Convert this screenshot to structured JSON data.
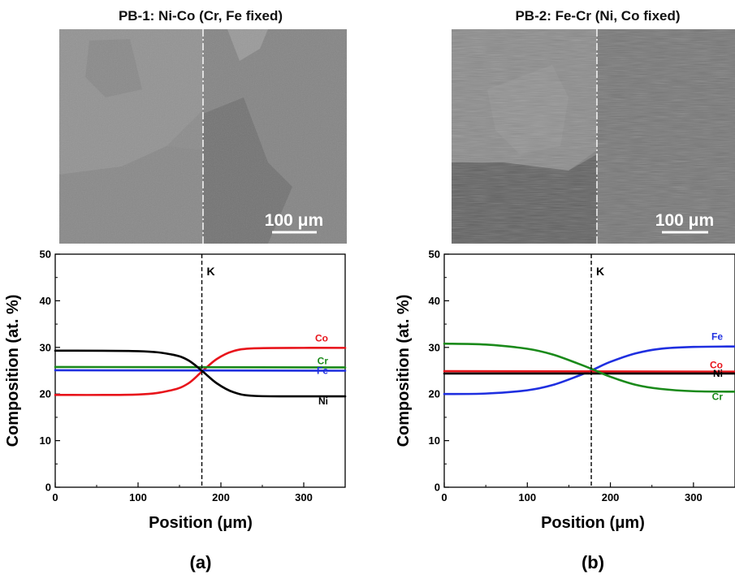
{
  "panels": [
    {
      "id": "a",
      "title": "PB-1:  Ni-Co (Cr, Fe fixed)",
      "scale_bar_label": "100 μm",
      "caption": "(a)"
    },
    {
      "id": "b",
      "title": "PB-2:  Fe-Cr (Ni, Co fixed)",
      "scale_bar_label": "100 μm",
      "caption": "(b)"
    }
  ],
  "chart_data": [
    {
      "type": "line",
      "xlabel": "Position (μm)",
      "ylabel": "Composition (at. %)",
      "xlim": [
        0,
        350
      ],
      "ylim": [
        0,
        50
      ],
      "xticks": [
        0,
        100,
        200,
        300
      ],
      "yticks": [
        0,
        10,
        20,
        30,
        40,
        50
      ],
      "grid": false,
      "marker_line": {
        "x": 177,
        "label": "K"
      },
      "series": [
        {
          "name": "Co",
          "color": "#e8141b",
          "x": [
            0,
            100,
            140,
            160,
            177,
            195,
            215,
            240,
            300,
            350
          ],
          "values": [
            19.8,
            19.9,
            20.8,
            22.2,
            24.8,
            27.5,
            29.2,
            29.8,
            29.9,
            29.9
          ]
        },
        {
          "name": "Cr",
          "color": "#1a8a1a",
          "x": [
            0,
            350
          ],
          "values": [
            25.8,
            25.7
          ]
        },
        {
          "name": "Fe",
          "color": "#1f2fe0",
          "x": [
            0,
            350
          ],
          "values": [
            25.1,
            25.0
          ]
        },
        {
          "name": "Ni",
          "color": "#000000",
          "x": [
            0,
            100,
            140,
            160,
            177,
            195,
            215,
            240,
            300,
            350
          ],
          "values": [
            29.3,
            29.2,
            28.5,
            27.3,
            25.0,
            22.3,
            20.4,
            19.6,
            19.5,
            19.5
          ]
        }
      ]
    },
    {
      "type": "line",
      "xlabel": "Position (μm)",
      "ylabel": "Composition (at. %)",
      "xlim": [
        0,
        350
      ],
      "ylim": [
        0,
        50
      ],
      "xticks": [
        0,
        100,
        200,
        300
      ],
      "yticks": [
        0,
        10,
        20,
        30,
        40,
        50
      ],
      "grid": false,
      "marker_line": {
        "x": 177,
        "label": "K"
      },
      "series": [
        {
          "name": "Fe",
          "color": "#1f2fe0",
          "x": [
            0,
            50,
            100,
            130,
            160,
            180,
            200,
            230,
            260,
            300,
            350
          ],
          "values": [
            20.0,
            20.1,
            20.8,
            21.9,
            23.8,
            25.3,
            26.9,
            28.7,
            29.7,
            30.1,
            30.2
          ]
        },
        {
          "name": "Co",
          "color": "#e8141b",
          "x": [
            0,
            350
          ],
          "values": [
            24.9,
            24.8
          ]
        },
        {
          "name": "Ni",
          "color": "#000000",
          "x": [
            0,
            350
          ],
          "values": [
            24.4,
            24.4
          ]
        },
        {
          "name": "Cr",
          "color": "#1a8a1a",
          "x": [
            0,
            50,
            100,
            130,
            160,
            180,
            200,
            230,
            260,
            300,
            350
          ],
          "values": [
            30.8,
            30.6,
            29.7,
            28.5,
            26.6,
            25.2,
            23.7,
            22.0,
            21.1,
            20.6,
            20.5
          ]
        }
      ]
    }
  ]
}
